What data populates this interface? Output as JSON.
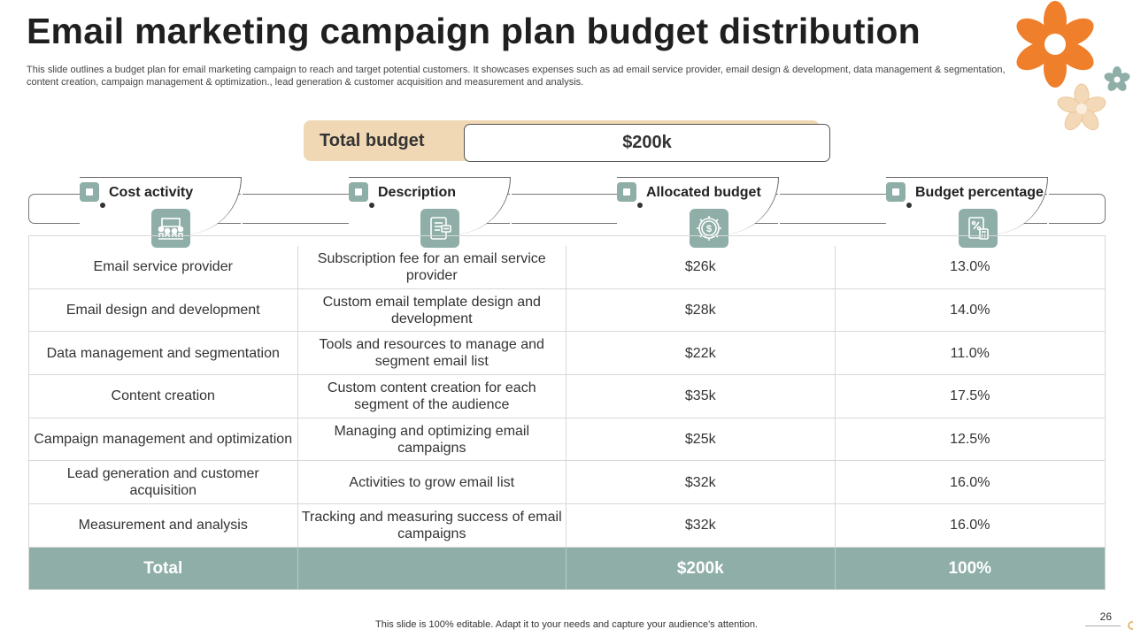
{
  "title": "Email marketing campaign plan budget distribution",
  "subtitle": "This slide outlines a budget plan for email marketing campaign to reach and target potential customers. It showcases expenses such as ad email service provider, email design & development, data management & segmentation, content creation, campaign management & optimization., lead generation & customer acquisition and measurement and analysis.",
  "budget": {
    "label": "Total budget",
    "value": "$200k"
  },
  "columns": [
    {
      "label": "Cost activity",
      "icon": "meeting-people-icon"
    },
    {
      "label": "Description",
      "icon": "document-chat-icon"
    },
    {
      "label": "Allocated budget",
      "icon": "dollar-target-icon"
    },
    {
      "label": "Budget percentage",
      "icon": "calculator-percent-icon"
    }
  ],
  "rows": [
    {
      "activity": "Email service provider",
      "description": "Subscription fee for an email service provider",
      "allocated": "$26k",
      "percentage": "13.0%"
    },
    {
      "activity": "Email design and development",
      "description": "Custom email template design and development",
      "allocated": "$28k",
      "percentage": "14.0%"
    },
    {
      "activity": "Data management and segmentation",
      "description": "Tools and resources to manage and segment email list",
      "allocated": "$22k",
      "percentage": "11.0%"
    },
    {
      "activity": "Content creation",
      "description": "Custom content creation for each segment of the audience",
      "allocated": "$35k",
      "percentage": "17.5%"
    },
    {
      "activity": "Campaign management and optimization",
      "description": "Managing and optimizing email campaigns",
      "allocated": "$25k",
      "percentage": "12.5%"
    },
    {
      "activity": "Lead generation and customer acquisition",
      "description": "Activities to grow email list",
      "allocated": "$32k",
      "percentage": "16.0%"
    },
    {
      "activity": "Measurement and analysis",
      "description": "Tracking and measuring success of email campaigns",
      "allocated": "$32k",
      "percentage": "16.0%"
    }
  ],
  "total": {
    "label": "Total",
    "description": "",
    "allocated": "$200k",
    "percentage": "100%"
  },
  "footer": "This slide is 100% editable. Adapt it to your needs and capture your audience's attention.",
  "page_number": "26",
  "colors": {
    "accent": "#8eaea7",
    "budget_bar": "#f0d8b5",
    "flower_orange": "#ef7f2a",
    "flower_peach": "#f3d9b8"
  }
}
